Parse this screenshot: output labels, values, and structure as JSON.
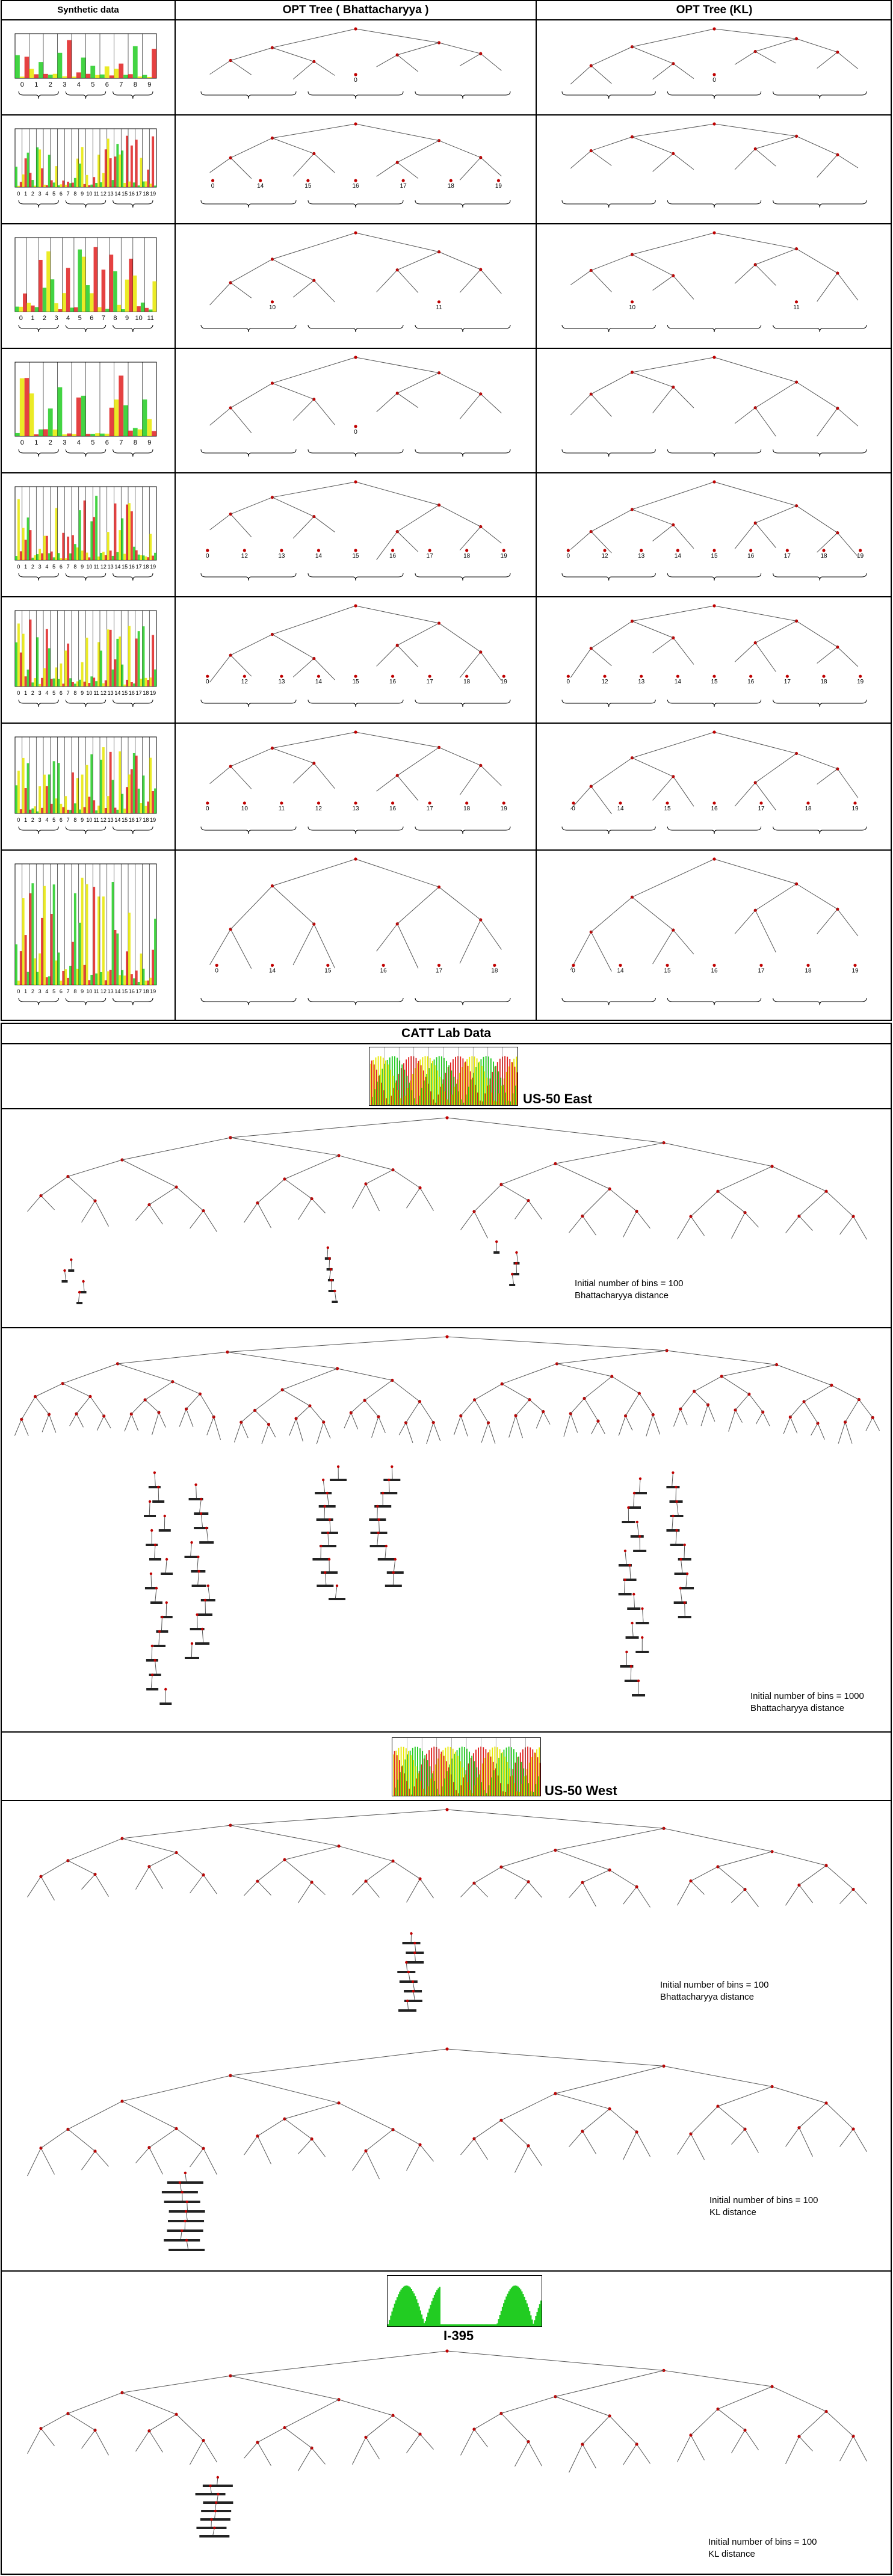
{
  "table": {
    "headers": {
      "col1": "Synthetic data",
      "col2": "OPT Tree ( Bhattacharyya )",
      "col3": "OPT Tree (KL)"
    },
    "rows": [
      {
        "bins": "10",
        "labels": [
          "0",
          "1",
          "2",
          "3",
          "4",
          "5",
          "6",
          "7",
          "8",
          "9"
        ],
        "bhatt": [
          "0"
        ],
        "kl": [
          "0"
        ]
      },
      {
        "bins": "20",
        "labels": [
          "0",
          "1",
          "2",
          "3",
          "4",
          "5",
          "6",
          "7",
          "8",
          "9",
          "10",
          "11",
          "12",
          "13",
          "14",
          "15",
          "16",
          "17",
          "18",
          "19"
        ],
        "bhatt": [
          "0",
          "14",
          "15",
          "16",
          "17",
          "18",
          "19"
        ],
        "kl": []
      },
      {
        "bins": "12",
        "labels": [
          "0",
          "1",
          "2",
          "3",
          "4",
          "5",
          "6",
          "7",
          "8",
          "9",
          "10",
          "11"
        ],
        "bhatt": [
          "10",
          "11"
        ],
        "kl": [
          "10",
          "11"
        ]
      },
      {
        "bins": "10",
        "labels": [
          "0",
          "1",
          "2",
          "3",
          "4",
          "5",
          "6",
          "7",
          "8",
          "9"
        ],
        "bhatt": [
          "0"
        ],
        "kl": []
      },
      {
        "bins": "20",
        "labels": [
          "0",
          "1",
          "2",
          "3",
          "4",
          "5",
          "6",
          "7",
          "8",
          "9",
          "10",
          "11",
          "12",
          "13",
          "14",
          "15",
          "16",
          "17",
          "18",
          "19"
        ],
        "bhatt": [
          "0",
          "12",
          "13",
          "14",
          "15",
          "16",
          "17",
          "18",
          "19"
        ],
        "kl": [
          "0",
          "12",
          "13",
          "14",
          "15",
          "16",
          "17",
          "18",
          "19"
        ]
      },
      {
        "bins": "20",
        "labels": [
          "0",
          "1",
          "2",
          "3",
          "4",
          "5",
          "6",
          "7",
          "8",
          "9",
          "10",
          "11",
          "12",
          "13",
          "14",
          "15",
          "16",
          "17",
          "18",
          "19"
        ],
        "bhatt": [
          "0",
          "12",
          "13",
          "14",
          "15",
          "16",
          "17",
          "18",
          "19"
        ],
        "kl": [
          "0",
          "12",
          "13",
          "14",
          "15",
          "16",
          "17",
          "18",
          "19"
        ]
      },
      {
        "bins": "20",
        "labels": [
          "0",
          "1",
          "2",
          "3",
          "4",
          "5",
          "6",
          "7",
          "8",
          "9",
          "10",
          "11",
          "12",
          "13",
          "14",
          "15",
          "16",
          "17",
          "18",
          "19"
        ],
        "bhatt": [
          "0",
          "10",
          "11",
          "12",
          "13",
          "16",
          "17",
          "18",
          "19"
        ],
        "kl": [
          "0",
          "14",
          "15",
          "16",
          "17",
          "18",
          "19"
        ]
      },
      {
        "bins": "20",
        "labels": [
          "0",
          "1",
          "2",
          "3",
          "4",
          "5",
          "6",
          "7",
          "8",
          "9",
          "10",
          "11",
          "12",
          "13",
          "14",
          "15",
          "16",
          "17",
          "18",
          "19"
        ],
        "bhatt": [
          "0",
          "14",
          "15",
          "16",
          "17",
          "18"
        ],
        "kl": [
          "0",
          "14",
          "15",
          "16",
          "17",
          "18",
          "19"
        ]
      }
    ]
  },
  "catt": {
    "title": "CATT Lab Data",
    "us50east": {
      "label": "US-50 East",
      "note1_a": "Initial number of bins = 100",
      "note1_b": "Bhattacharyya distance",
      "note2_a": "Initial number of bins = 1000",
      "note2_b": "Bhattacharyya distance"
    },
    "us50west": {
      "label": "US-50 West",
      "note1_a": "Initial number of bins = 100",
      "note1_b": "Bhattacharyya distance",
      "note2_a": "Initial number of bins = 100",
      "note2_b": "KL distance"
    },
    "i395": {
      "label": "I-395",
      "note_a": "Initial number of bins = 100",
      "note_b": "KL distance"
    }
  },
  "colors": {
    "border": "#000000",
    "edge": "#555555",
    "node": "#c00000",
    "green": "#22cc22",
    "yellow": "#e8e800",
    "red": "#e02020"
  }
}
